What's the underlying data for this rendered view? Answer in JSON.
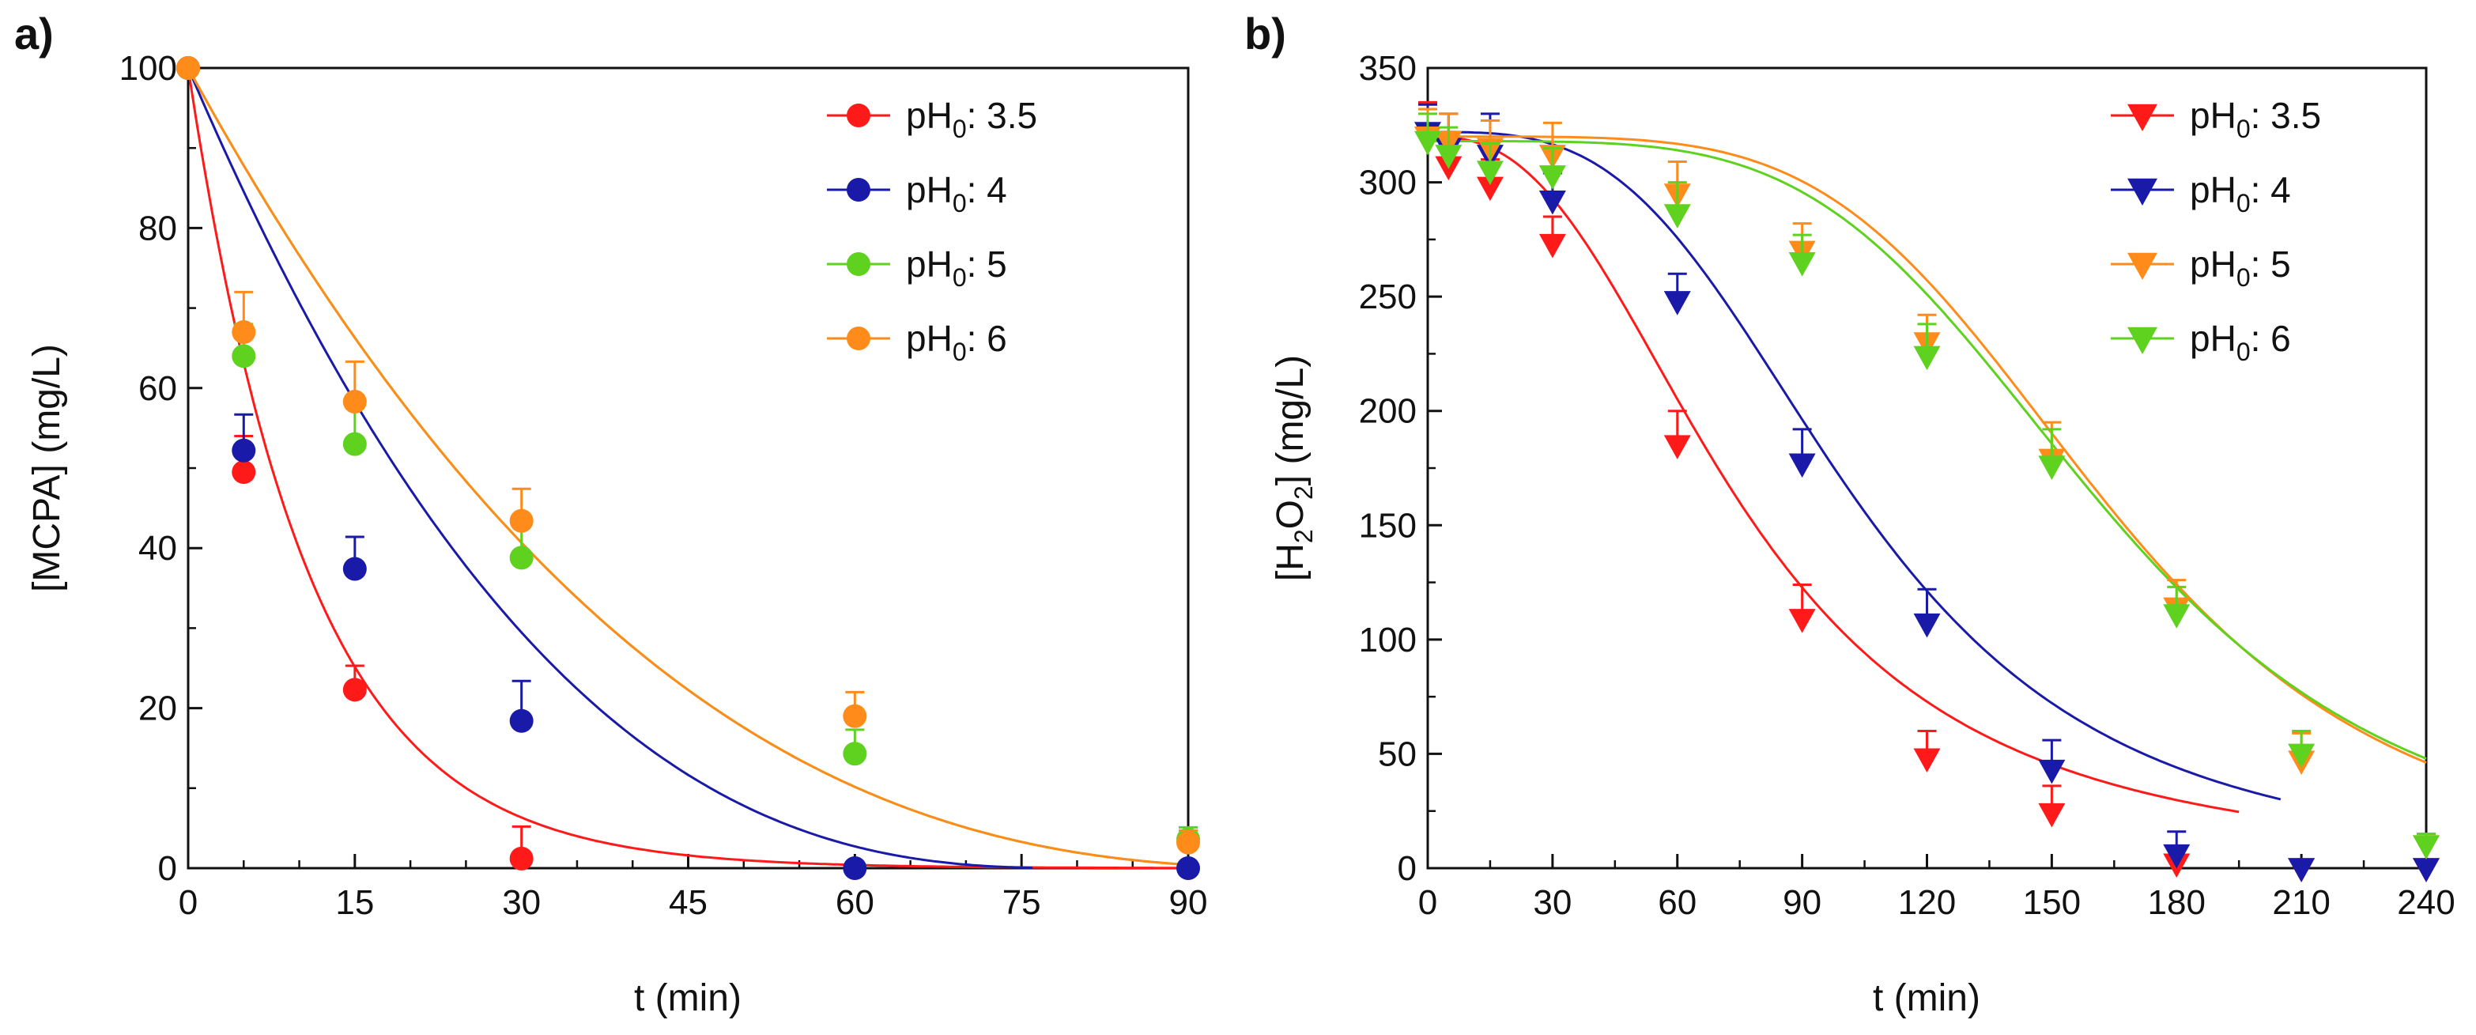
{
  "chart_data": [
    {
      "type": "scatter",
      "panel_label": "a)",
      "xlabel": "t (min)",
      "ylabel": "[MCPA] (mg/L)",
      "xlim": [
        0,
        90
      ],
      "ylim": [
        0,
        100
      ],
      "xticks": [
        "0",
        "15",
        "30",
        "45",
        "60",
        "75",
        "90"
      ],
      "yticks": [
        "0",
        "20",
        "40",
        "60",
        "80",
        "100"
      ],
      "marker": "circle",
      "legend": "top-right",
      "series": [
        {
          "name_prefix": "pH",
          "name_sub": "0",
          "name_suffix": ": 3.5",
          "color": "#ff1a1a",
          "points": [
            {
              "x": 0,
              "y": 100,
              "err": 0
            },
            {
              "x": 5,
              "y": 49.5,
              "err": 4.5
            },
            {
              "x": 15,
              "y": 22.3,
              "err": 3
            },
            {
              "x": 30,
              "y": 1.2,
              "err": 4
            }
          ],
          "fit": {
            "c0": 100,
            "k": 0.092
          }
        },
        {
          "name_prefix": "pH",
          "name_sub": "0",
          "name_suffix": ": 4",
          "color": "#1a1aa8",
          "points": [
            {
              "x": 0,
              "y": 100,
              "err": 0
            },
            {
              "x": 5,
              "y": 52.2,
              "err": 4.5
            },
            {
              "x": 15,
              "y": 37.4,
              "err": 4
            },
            {
              "x": 30,
              "y": 18.4,
              "err": 5
            },
            {
              "x": 60,
              "y": 0,
              "err": 0
            },
            {
              "x": 90,
              "y": 0,
              "err": 0
            }
          ],
          "fit": {
            "c0": 100,
            "n": 2.6,
            "K": 80,
            "tmax": 76
          }
        },
        {
          "name_prefix": "pH",
          "name_sub": "0",
          "name_suffix": ": 5",
          "color": "#5ed21e",
          "points": [
            {
              "x": 0,
              "y": 100,
              "err": 0
            },
            {
              "x": 5,
              "y": 64,
              "err": 4
            },
            {
              "x": 15,
              "y": 53,
              "err": 4.5
            },
            {
              "x": 30,
              "y": 38.8,
              "err": 4
            },
            {
              "x": 60,
              "y": 14.3,
              "err": 3
            },
            {
              "x": 90,
              "y": 3.6,
              "err": 1.5
            }
          ],
          "fit": {
            "c0": 100,
            "n": 2.6,
            "K": 80,
            "tmax": 999
          }
        },
        {
          "name_prefix": "pH",
          "name_sub": "0",
          "name_suffix": ": 6",
          "color": "#ff8c1a",
          "points": [
            {
              "x": 0,
              "y": 100,
              "err": 0
            },
            {
              "x": 5,
              "y": 67,
              "err": 5
            },
            {
              "x": 15,
              "y": 58.3,
              "err": 5
            },
            {
              "x": 30,
              "y": 43.4,
              "err": 4
            },
            {
              "x": 60,
              "y": 19,
              "err": 3
            },
            {
              "x": 90,
              "y": 3.2,
              "err": 1.5
            }
          ],
          "fit": {
            "c0": 100,
            "n": 2.6,
            "K": 80,
            "tmax": 999
          }
        }
      ]
    },
    {
      "type": "scatter",
      "panel_label": "b)",
      "xlabel": "t (min)",
      "ylabel_prefix": "[H",
      "ylabel_sub1": "2",
      "ylabel_mid": "O",
      "ylabel_sub2": "2",
      "ylabel_suffix": "] (mg/L)",
      "xlim": [
        0,
        240
      ],
      "ylim": [
        0,
        350
      ],
      "xticks": [
        "0",
        "30",
        "60",
        "90",
        "120",
        "150",
        "180",
        "210",
        "240"
      ],
      "yticks": [
        "0",
        "50",
        "100",
        "150",
        "200",
        "250",
        "300",
        "350"
      ],
      "marker": "triangle-down",
      "legend": "top-right",
      "series": [
        {
          "name_prefix": "pH",
          "name_sub": "0",
          "name_suffix": ": 3.5",
          "color": "#ff1a1a",
          "points": [
            {
              "x": 0,
              "y": 320,
              "err": 15
            },
            {
              "x": 5,
              "y": 307,
              "err": 12
            },
            {
              "x": 15,
              "y": 298,
              "err": 12
            },
            {
              "x": 30,
              "y": 273,
              "err": 12
            },
            {
              "x": 60,
              "y": 185,
              "err": 15
            },
            {
              "x": 90,
              "y": 109,
              "err": 15
            },
            {
              "x": 120,
              "y": 48,
              "err": 12
            },
            {
              "x": 150,
              "y": 24,
              "err": 12
            },
            {
              "x": 180,
              "y": 2,
              "err": 0
            },
            {
              "x": 210,
              "y": 0,
              "err": 0
            },
            {
              "x": 240,
              "y": 0,
              "err": 0
            }
          ],
          "fit": {
            "c0": 320,
            "n": 2.6,
            "t50": 75,
            "tmax": 195
          }
        },
        {
          "name_prefix": "pH",
          "name_sub": "0",
          "name_suffix": ": 4",
          "color": "#1a1aa8",
          "points": [
            {
              "x": 0,
              "y": 322,
              "err": 12
            },
            {
              "x": 5,
              "y": 315,
              "err": 15
            },
            {
              "x": 15,
              "y": 312,
              "err": 18
            },
            {
              "x": 30,
              "y": 292,
              "err": 12
            },
            {
              "x": 60,
              "y": 248,
              "err": 12
            },
            {
              "x": 90,
              "y": 177,
              "err": 15
            },
            {
              "x": 120,
              "y": 107,
              "err": 15
            },
            {
              "x": 150,
              "y": 43,
              "err": 13
            },
            {
              "x": 180,
              "y": 6,
              "err": 10
            },
            {
              "x": 210,
              "y": 0,
              "err": 0
            },
            {
              "x": 240,
              "y": 0,
              "err": 0
            }
          ],
          "fit": {
            "c0": 322,
            "n": 3.3,
            "t50": 103,
            "tmax": 205
          }
        },
        {
          "name_prefix": "pH",
          "name_sub": "0",
          "name_suffix": ": 5",
          "color": "#ff8c1a",
          "points": [
            {
              "x": 0,
              "y": 320,
              "err": 12
            },
            {
              "x": 5,
              "y": 318,
              "err": 12
            },
            {
              "x": 15,
              "y": 315,
              "err": 12
            },
            {
              "x": 30,
              "y": 312,
              "err": 14
            },
            {
              "x": 60,
              "y": 295,
              "err": 14
            },
            {
              "x": 90,
              "y": 270,
              "err": 12
            },
            {
              "x": 120,
              "y": 230,
              "err": 12
            },
            {
              "x": 150,
              "y": 179,
              "err": 16
            },
            {
              "x": 180,
              "y": 114,
              "err": 12
            },
            {
              "x": 210,
              "y": 47,
              "err": 12
            },
            {
              "x": 240,
              "y": 10,
              "err": 5
            }
          ],
          "fit": {
            "c0": 320,
            "n": 4.6,
            "t50": 163,
            "tmax": 999
          }
        },
        {
          "name_prefix": "pH",
          "name_sub": "0",
          "name_suffix": ": 6",
          "color": "#5ed21e",
          "points": [
            {
              "x": 0,
              "y": 318,
              "err": 12
            },
            {
              "x": 5,
              "y": 312,
              "err": 12
            },
            {
              "x": 15,
              "y": 305,
              "err": 12
            },
            {
              "x": 30,
              "y": 303,
              "err": 12
            },
            {
              "x": 60,
              "y": 286,
              "err": 14
            },
            {
              "x": 90,
              "y": 265,
              "err": 12
            },
            {
              "x": 120,
              "y": 224,
              "err": 14
            },
            {
              "x": 150,
              "y": 176,
              "err": 16
            },
            {
              "x": 180,
              "y": 111,
              "err": 12
            },
            {
              "x": 210,
              "y": 50,
              "err": 10
            },
            {
              "x": 240,
              "y": 10,
              "err": 5
            }
          ],
          "fit": {
            "c0": 318,
            "n": 4.4,
            "t50": 162,
            "tmax": 999
          }
        }
      ]
    }
  ]
}
